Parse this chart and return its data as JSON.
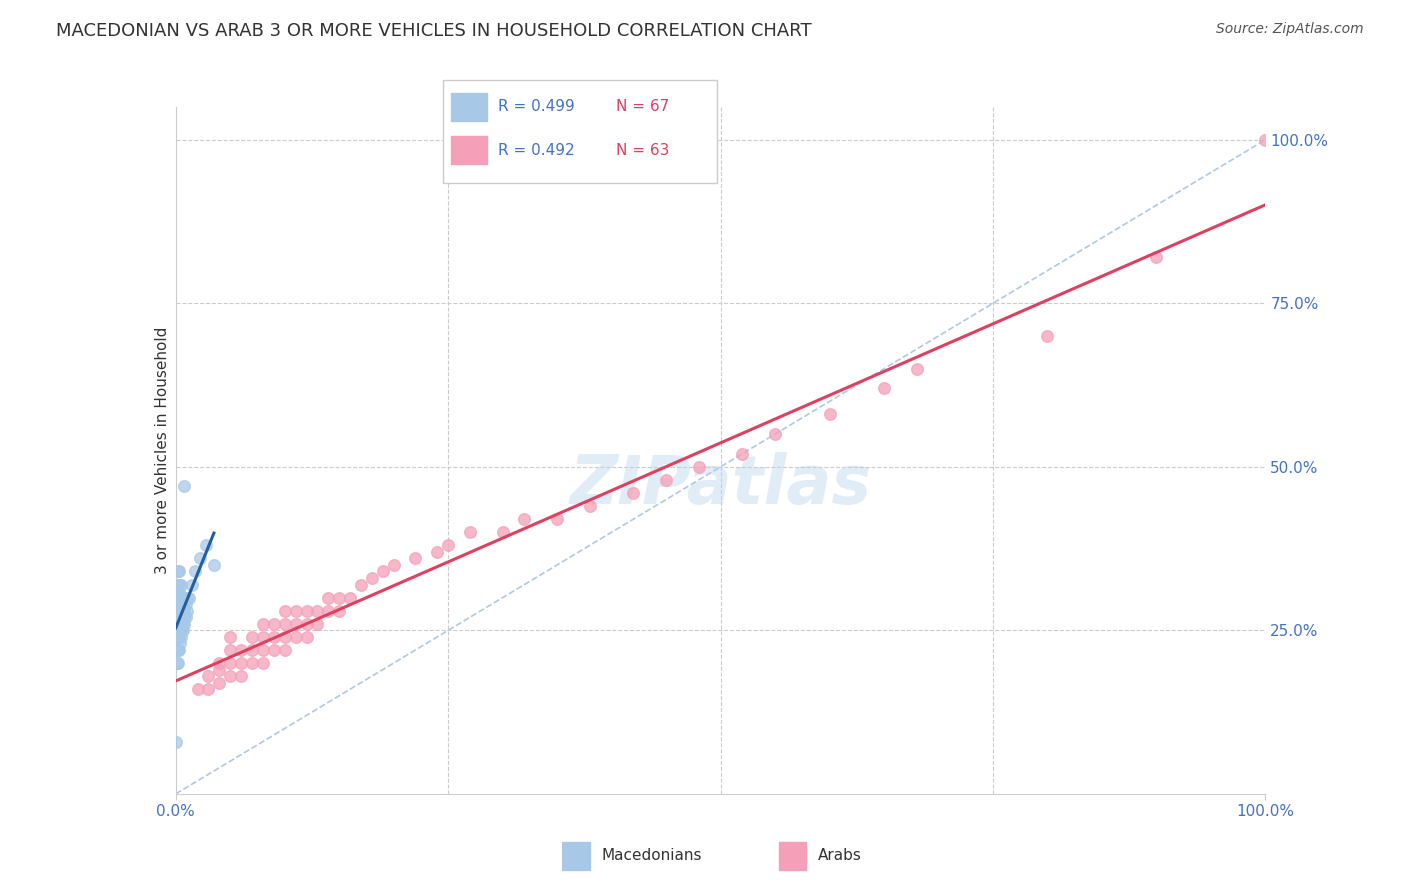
{
  "title": "MACEDONIAN VS ARAB 3 OR MORE VEHICLES IN HOUSEHOLD CORRELATION CHART",
  "source": "Source: ZipAtlas.com",
  "ylabel": "3 or more Vehicles in Household",
  "legend_macedonian_R": "R = 0.499",
  "legend_macedonian_N": "N = 67",
  "legend_arab_R": "R = 0.492",
  "legend_arab_N": "N = 63",
  "macedonian_color": "#a8c8e8",
  "arab_color": "#f4a0b8",
  "macedonian_line_color": "#2060a0",
  "arab_line_color": "#e04060",
  "diagonal_color": "#b0c8e8",
  "title_color": "#333333",
  "tick_color": "#4472c4",
  "grid_color": "#cccccc",
  "macedonians_x": [
    0.0,
    0.001,
    0.001,
    0.001,
    0.001,
    0.001,
    0.001,
    0.002,
    0.002,
    0.002,
    0.002,
    0.002,
    0.002,
    0.002,
    0.002,
    0.002,
    0.002,
    0.003,
    0.003,
    0.003,
    0.003,
    0.003,
    0.003,
    0.003,
    0.003,
    0.003,
    0.003,
    0.003,
    0.004,
    0.004,
    0.004,
    0.004,
    0.004,
    0.004,
    0.004,
    0.004,
    0.005,
    0.005,
    0.005,
    0.005,
    0.005,
    0.005,
    0.005,
    0.006,
    0.006,
    0.006,
    0.006,
    0.006,
    0.007,
    0.007,
    0.007,
    0.007,
    0.007,
    0.008,
    0.008,
    0.008,
    0.009,
    0.009,
    0.01,
    0.01,
    0.012,
    0.015,
    0.018,
    0.022,
    0.028,
    0.035,
    0.008
  ],
  "macedonians_y": [
    0.08,
    0.2,
    0.22,
    0.24,
    0.25,
    0.26,
    0.28,
    0.2,
    0.22,
    0.24,
    0.25,
    0.26,
    0.28,
    0.29,
    0.3,
    0.32,
    0.34,
    0.22,
    0.24,
    0.25,
    0.26,
    0.27,
    0.28,
    0.29,
    0.3,
    0.31,
    0.32,
    0.34,
    0.23,
    0.25,
    0.26,
    0.27,
    0.28,
    0.29,
    0.3,
    0.32,
    0.24,
    0.25,
    0.26,
    0.27,
    0.28,
    0.3,
    0.32,
    0.25,
    0.26,
    0.27,
    0.28,
    0.3,
    0.25,
    0.26,
    0.27,
    0.28,
    0.3,
    0.26,
    0.27,
    0.28,
    0.27,
    0.29,
    0.28,
    0.3,
    0.3,
    0.32,
    0.34,
    0.36,
    0.38,
    0.35,
    0.47
  ],
  "arabs_x": [
    0.02,
    0.03,
    0.03,
    0.04,
    0.04,
    0.04,
    0.05,
    0.05,
    0.05,
    0.05,
    0.06,
    0.06,
    0.06,
    0.07,
    0.07,
    0.07,
    0.08,
    0.08,
    0.08,
    0.08,
    0.09,
    0.09,
    0.09,
    0.1,
    0.1,
    0.1,
    0.1,
    0.11,
    0.11,
    0.11,
    0.12,
    0.12,
    0.12,
    0.13,
    0.13,
    0.14,
    0.14,
    0.15,
    0.15,
    0.16,
    0.17,
    0.18,
    0.19,
    0.2,
    0.22,
    0.24,
    0.25,
    0.27,
    0.3,
    0.32,
    0.35,
    0.38,
    0.42,
    0.45,
    0.48,
    0.52,
    0.55,
    0.6,
    0.65,
    0.68,
    0.8,
    0.9,
    1.0
  ],
  "arabs_y": [
    0.16,
    0.16,
    0.18,
    0.17,
    0.19,
    0.2,
    0.18,
    0.2,
    0.22,
    0.24,
    0.18,
    0.2,
    0.22,
    0.2,
    0.22,
    0.24,
    0.2,
    0.22,
    0.24,
    0.26,
    0.22,
    0.24,
    0.26,
    0.22,
    0.24,
    0.26,
    0.28,
    0.24,
    0.26,
    0.28,
    0.24,
    0.26,
    0.28,
    0.26,
    0.28,
    0.28,
    0.3,
    0.28,
    0.3,
    0.3,
    0.32,
    0.33,
    0.34,
    0.35,
    0.36,
    0.37,
    0.38,
    0.4,
    0.4,
    0.42,
    0.42,
    0.44,
    0.46,
    0.48,
    0.5,
    0.52,
    0.55,
    0.58,
    0.62,
    0.65,
    0.7,
    0.82,
    1.0
  ],
  "xlim": [
    0.0,
    1.0
  ],
  "ylim": [
    0.0,
    1.05
  ],
  "right_yticks": [
    0.25,
    0.5,
    0.75,
    1.0
  ],
  "right_yticklabels": [
    "25.0%",
    "50.0%",
    "75.0%",
    "100.0%"
  ],
  "title_fontsize": 13,
  "label_fontsize": 11,
  "tick_fontsize": 11,
  "source_fontsize": 10,
  "marker_size": 70
}
